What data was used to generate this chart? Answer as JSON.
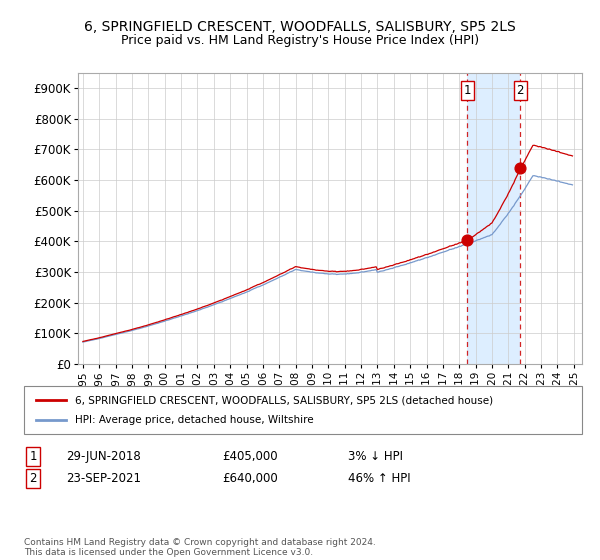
{
  "title": "6, SPRINGFIELD CRESCENT, WOODFALLS, SALISBURY, SP5 2LS",
  "subtitle": "Price paid vs. HM Land Registry's House Price Index (HPI)",
  "ylim": [
    0,
    950000
  ],
  "yticks": [
    0,
    100000,
    200000,
    300000,
    400000,
    500000,
    600000,
    700000,
    800000,
    900000
  ],
  "xlim_start": 1994.7,
  "xlim_end": 2025.5,
  "hpi_color": "#7799cc",
  "price_color": "#cc0000",
  "shade_color": "#ddeeff",
  "sale1_date": 2018.497,
  "sale1_price": 405000,
  "sale2_date": 2021.731,
  "sale2_price": 640000,
  "legend_line1": "6, SPRINGFIELD CRESCENT, WOODFALLS, SALISBURY, SP5 2LS (detached house)",
  "legend_line2": "HPI: Average price, detached house, Wiltshire",
  "ann1_num": "1",
  "ann1_date": "29-JUN-2018",
  "ann1_price": "£405,000",
  "ann1_pct": "3% ↓ HPI",
  "ann2_num": "2",
  "ann2_date": "23-SEP-2021",
  "ann2_price": "£640,000",
  "ann2_pct": "46% ↑ HPI",
  "footer": "Contains HM Land Registry data © Crown copyright and database right 2024.\nThis data is licensed under the Open Government Licence v3.0.",
  "background_color": "#ffffff",
  "grid_color": "#cccccc"
}
